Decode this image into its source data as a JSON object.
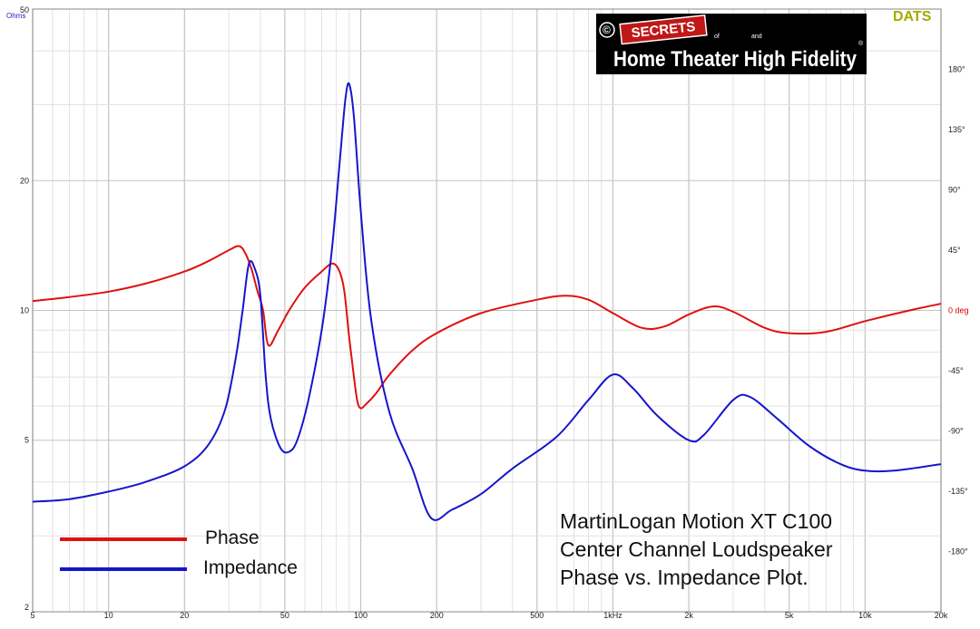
{
  "chart_data": {
    "type": "line",
    "x_scale": "log",
    "xlim": [
      5,
      20000
    ],
    "x_tick_labels": [
      "5",
      "10",
      "20",
      "50",
      "100",
      "200",
      "500",
      "1kHz",
      "2k",
      "5k",
      "10k",
      "20k"
    ],
    "x_tick_values": [
      5,
      10,
      20,
      50,
      100,
      200,
      500,
      1000,
      2000,
      5000,
      10000,
      20000
    ],
    "y_left": {
      "unit_label": "Ohms",
      "scale": "log",
      "lim": [
        2,
        50
      ],
      "tick_labels": [
        "50",
        "20",
        "10",
        "5",
        "2"
      ],
      "tick_values": [
        50,
        20,
        10,
        5,
        2
      ]
    },
    "y_right": {
      "scale": "linear",
      "lim": [
        -225,
        225
      ],
      "tick_labels": [
        "180°",
        "135°",
        "90°",
        "45°",
        "0 deg",
        "-45°",
        "-90°",
        "-135°",
        "-180°"
      ],
      "tick_values": [
        180,
        135,
        90,
        45,
        0,
        -45,
        -90,
        -135,
        -180
      ],
      "zero_label_color": "#dd0000"
    },
    "grid": true,
    "legend_position": "bottom-left",
    "series": [
      {
        "name": "Phase",
        "axis": "right",
        "color": "#e01010",
        "x": [
          5,
          7,
          10,
          14,
          20,
          25,
          30,
          33,
          35,
          37,
          39,
          41,
          43,
          47,
          52,
          60,
          70,
          77,
          82,
          86,
          90,
          94,
          97,
          100,
          105,
          115,
          130,
          160,
          200,
          300,
          500,
          650,
          800,
          1000,
          1300,
          1600,
          2000,
          2500,
          3000,
          4000,
          5000,
          7000,
          10000,
          15000,
          20000
        ],
        "y": [
          7,
          10,
          14,
          20,
          29,
          37,
          45,
          48,
          42,
          30,
          14,
          0,
          -26,
          -15,
          0,
          17,
          29,
          35,
          30,
          15,
          -20,
          -50,
          -68,
          -73,
          -70,
          -62,
          -48,
          -30,
          -17,
          -2,
          8,
          11,
          8,
          -2,
          -13,
          -12,
          -3,
          3,
          -1,
          -13,
          -17,
          -16,
          -8,
          0,
          5
        ]
      },
      {
        "name": "Impedance",
        "axis": "left",
        "color": "#1515cc",
        "x": [
          5,
          7,
          10,
          14,
          20,
          25,
          29,
          32,
          34,
          36,
          38,
          40,
          42,
          44,
          48,
          52,
          56,
          62,
          70,
          77,
          83,
          87,
          90,
          94,
          100,
          110,
          130,
          160,
          190,
          230,
          300,
          400,
          600,
          800,
          1000,
          1200,
          1500,
          2000,
          2300,
          3000,
          3500,
          4500,
          6000,
          8000,
          10000,
          13000,
          20000
        ],
        "y": [
          3.6,
          3.65,
          3.8,
          4.0,
          4.35,
          4.9,
          5.9,
          7.8,
          10.0,
          12.8,
          12.5,
          10.8,
          7.0,
          5.6,
          4.8,
          4.7,
          5.0,
          6.2,
          9.0,
          14.0,
          23.0,
          31.0,
          33.5,
          28.0,
          17.0,
          9.5,
          5.8,
          4.3,
          3.3,
          3.45,
          3.75,
          4.3,
          5.1,
          6.2,
          7.1,
          6.6,
          5.7,
          5.0,
          5.15,
          6.2,
          6.3,
          5.6,
          4.85,
          4.4,
          4.25,
          4.25,
          4.4
        ]
      }
    ],
    "legend": [
      {
        "label": "Phase",
        "color": "#e01010"
      },
      {
        "label": "Impedance",
        "color": "#1515cc"
      }
    ],
    "annotation_lines": [
      "MartinLogan Motion XT C100",
      "Center Channel Loudspeaker",
      "Phase vs. Impedance Plot."
    ],
    "watermark": "DATS",
    "logo": {
      "symbol": "©",
      "secrets": "SECRETS",
      "of": "of",
      "and": "and",
      "main": "Home Theater High Fidelity",
      "registered": "®"
    }
  }
}
